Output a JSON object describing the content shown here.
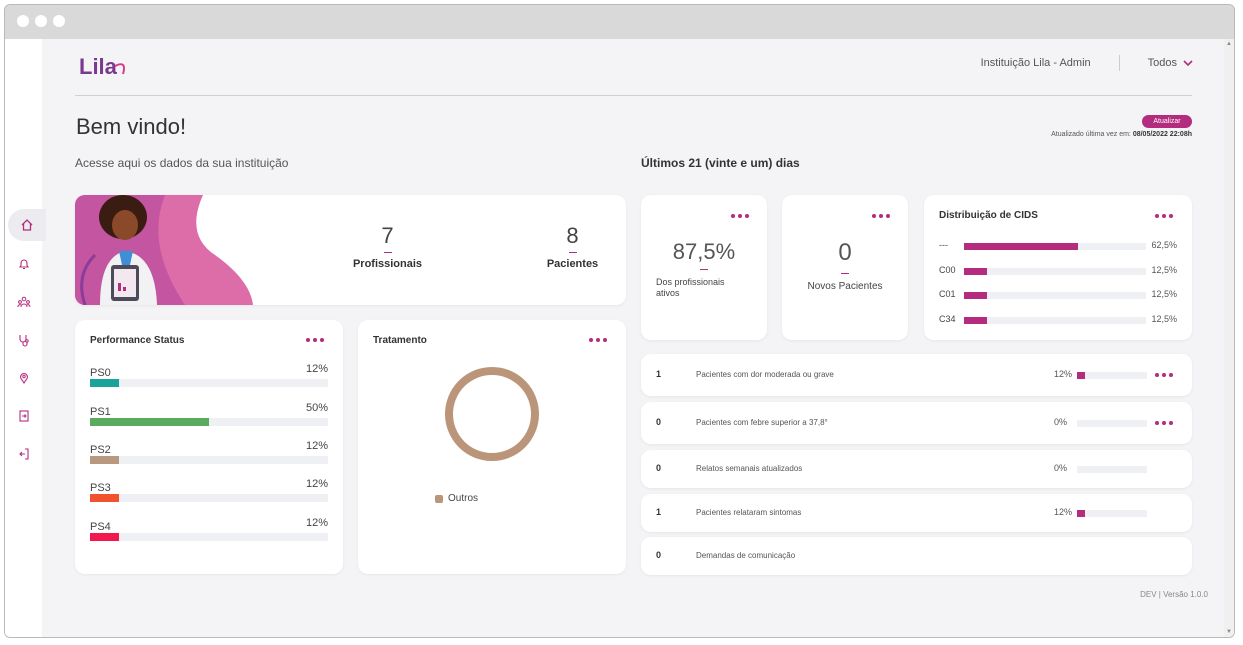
{
  "header": {
    "logo_text": "Lila",
    "institution": "Instituição Lila - Admin",
    "filter": "Todos"
  },
  "welcome": {
    "title": "Bem vindo!",
    "subtitle": "Acesse aqui os dados da sua instituição",
    "period": "Últimos 21 (vinte e um) dias",
    "update_button": "Atualizar",
    "update_prefix": "Atualizado última vez em:",
    "update_date": "08/05/2022 22:08h"
  },
  "hero": {
    "professionals_value": "7",
    "professionals_label": "Profissionais",
    "patients_value": "8",
    "patients_label": "Pacientes"
  },
  "performance": {
    "title": "Performance Status",
    "items": [
      {
        "name": "PS0",
        "pct": "12%",
        "fraction": 0.12,
        "color": "#1aa39b"
      },
      {
        "name": "PS1",
        "pct": "50%",
        "fraction": 0.5,
        "color": "#5aaa5f"
      },
      {
        "name": "PS2",
        "pct": "12%",
        "fraction": 0.12,
        "color": "#b89980"
      },
      {
        "name": "PS3",
        "pct": "12%",
        "fraction": 0.12,
        "color": "#f0532d"
      },
      {
        "name": "PS4",
        "pct": "12%",
        "fraction": 0.12,
        "color": "#f2174c"
      }
    ]
  },
  "treatment": {
    "title": "Tratamento",
    "legend": "Outros",
    "color": "#bb9579"
  },
  "active_professionals": {
    "value": "87,5%",
    "label": "Dos profissionais ativos"
  },
  "new_patients": {
    "value": "0",
    "label": "Novos Pacientes"
  },
  "cids": {
    "title": "Distribuição de CIDS",
    "items": [
      {
        "name": "---",
        "pct": "62,5%",
        "fraction": 0.625
      },
      {
        "name": "C00",
        "pct": "12,5%",
        "fraction": 0.125
      },
      {
        "name": "C01",
        "pct": "12,5%",
        "fraction": 0.125
      },
      {
        "name": "C34",
        "pct": "12,5%",
        "fraction": 0.125
      }
    ]
  },
  "rows": [
    {
      "count": "1",
      "text": "Pacientes com dor moderada ou grave",
      "pct": "12%",
      "fraction": 0.12,
      "menu": true
    },
    {
      "count": "0",
      "text": "Pacientes com febre superior a 37,8°",
      "pct": "0%",
      "fraction": 0,
      "menu": true
    },
    {
      "count": "0",
      "text": "Relatos semanais atualizados",
      "pct": "0%",
      "fraction": 0,
      "menu": false
    },
    {
      "count": "1",
      "text": "Pacientes relataram sintomas",
      "pct": "12%",
      "fraction": 0.12,
      "menu": false
    },
    {
      "count": "0",
      "text": "Demandas de comunicação",
      "pct": "",
      "fraction": null,
      "menu": false
    }
  ],
  "footer": "DEV | Versão 1.0.0",
  "sidebar": {
    "icons": [
      "home-icon",
      "bell-icon",
      "users-icon",
      "stethoscope-icon",
      "location-icon",
      "export-icon",
      "logout-icon"
    ]
  },
  "colors": {
    "accent": "#b42c7d"
  }
}
